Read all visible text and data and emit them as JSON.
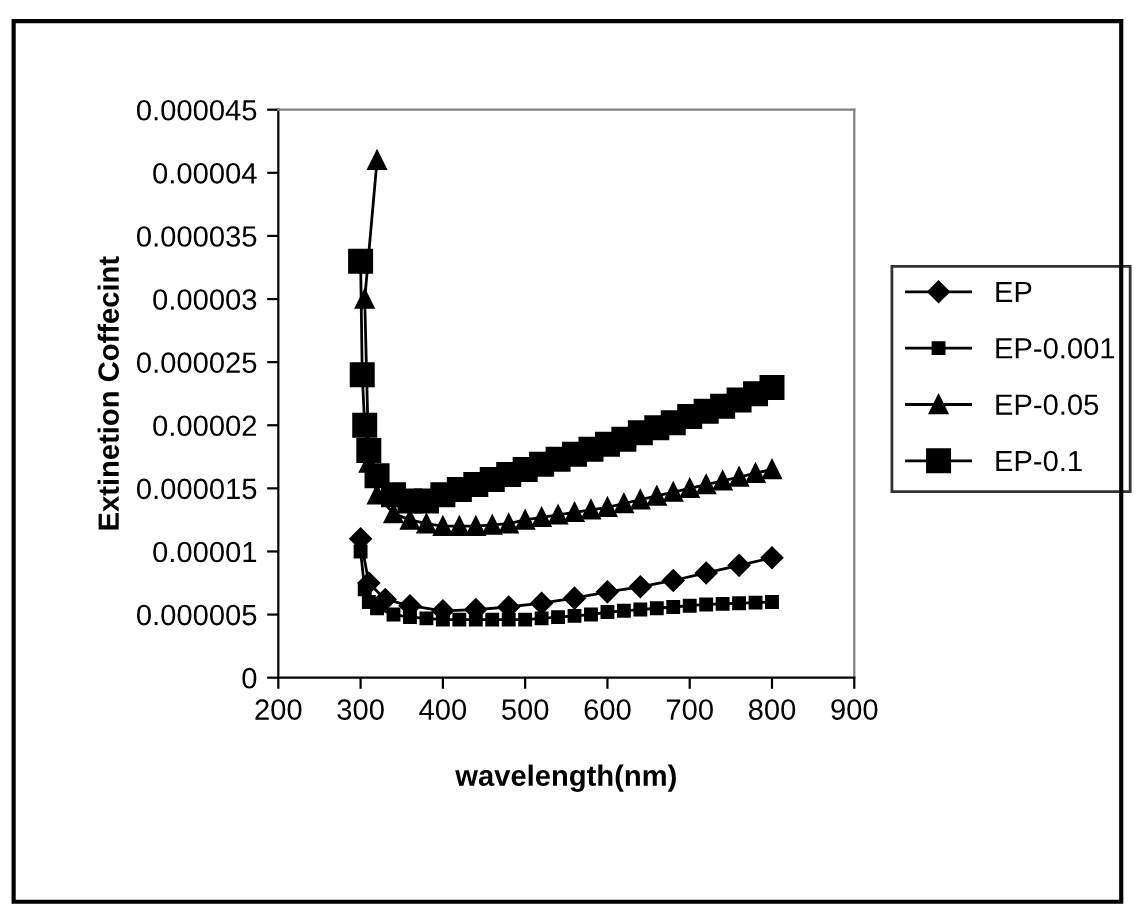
{
  "chart_data": {
    "type": "line",
    "xlabel": "wavelength(nm)",
    "ylabel": "Extinetion Coffecint",
    "xlim": [
      200,
      900
    ],
    "xticks": [
      200,
      300,
      400,
      500,
      600,
      700,
      800,
      900
    ],
    "ylim": [
      0,
      4.5e-05
    ],
    "yticks": [
      0,
      {
        "value": 5e-06,
        "label": "0.000005"
      },
      {
        "value": 1e-05,
        "label": "0.00001"
      },
      {
        "value": 1.5e-05,
        "label": "0.000015"
      },
      {
        "value": 2e-05,
        "label": "0.00002"
      },
      {
        "value": 2.5e-05,
        "label": "0.000025"
      },
      {
        "value": 3e-05,
        "label": "0.00003"
      },
      {
        "value": 3.5e-05,
        "label": "0.000035"
      },
      {
        "value": 4e-05,
        "label": "0.00004"
      },
      {
        "value": 4.5e-05,
        "label": "0.000045"
      }
    ],
    "grid": false,
    "legend": "right",
    "line_style": "solid",
    "series": [
      {
        "name": "EP",
        "color": "#000000",
        "marker": "diamond",
        "x": [
          300,
          310,
          330,
          360,
          400,
          440,
          480,
          520,
          560,
          600,
          640,
          680,
          720,
          760,
          800
        ],
        "values": [
          1.1e-05,
          7.5e-06,
          6.2e-06,
          5.7e-06,
          5.3e-06,
          5.4e-06,
          5.6e-06,
          5.9e-06,
          6.3e-06,
          6.8e-06,
          7.2e-06,
          7.7e-06,
          8.3e-06,
          8.9e-06,
          9.5e-06
        ]
      },
      {
        "name": "EP-0.001",
        "color": "#000000",
        "marker": "square",
        "x": [
          300,
          305,
          310,
          320,
          340,
          360,
          380,
          400,
          420,
          440,
          460,
          480,
          500,
          520,
          540,
          560,
          580,
          600,
          620,
          640,
          660,
          680,
          700,
          720,
          740,
          760,
          780,
          800
        ],
        "values": [
          1e-05,
          7e-06,
          6e-06,
          5.5e-06,
          5e-06,
          4.8e-06,
          4.7e-06,
          4.6e-06,
          4.6e-06,
          4.6e-06,
          4.6e-06,
          4.6e-06,
          4.6e-06,
          4.7e-06,
          4.8e-06,
          4.9e-06,
          5e-06,
          5.2e-06,
          5.3e-06,
          5.4e-06,
          5.5e-06,
          5.6e-06,
          5.7e-06,
          5.8e-06,
          5.85e-06,
          5.9e-06,
          5.95e-06,
          6e-06
        ]
      },
      {
        "name": "EP-0.05",
        "color": "#000000",
        "marker": "triangle",
        "x": [
          320,
          305,
          310,
          320,
          340,
          360,
          380,
          400,
          420,
          440,
          460,
          480,
          500,
          520,
          540,
          560,
          580,
          600,
          620,
          640,
          660,
          680,
          700,
          720,
          740,
          760,
          780,
          800
        ],
        "values": [
          4.1e-05,
          3e-05,
          1.7e-05,
          1.45e-05,
          1.3e-05,
          1.25e-05,
          1.22e-05,
          1.2e-05,
          1.2e-05,
          1.2e-05,
          1.21e-05,
          1.22e-05,
          1.25e-05,
          1.27e-05,
          1.29e-05,
          1.31e-05,
          1.33e-05,
          1.35e-05,
          1.38e-05,
          1.41e-05,
          1.44e-05,
          1.47e-05,
          1.5e-05,
          1.53e-05,
          1.56e-05,
          1.59e-05,
          1.62e-05,
          1.65e-05
        ]
      },
      {
        "name": "EP-0.1",
        "color": "#000000",
        "marker": "square",
        "x": [
          300,
          302,
          305,
          310,
          320,
          340,
          360,
          380,
          400,
          420,
          440,
          460,
          480,
          500,
          520,
          540,
          560,
          580,
          600,
          620,
          640,
          660,
          680,
          700,
          720,
          740,
          760,
          780,
          800
        ],
        "values": [
          3.3e-05,
          2.4e-05,
          2e-05,
          1.8e-05,
          1.6e-05,
          1.45e-05,
          1.4e-05,
          1.4e-05,
          1.45e-05,
          1.49e-05,
          1.53e-05,
          1.57e-05,
          1.61e-05,
          1.65e-05,
          1.69e-05,
          1.73e-05,
          1.77e-05,
          1.81e-05,
          1.85e-05,
          1.89e-05,
          1.94e-05,
          1.98e-05,
          2.02e-05,
          2.07e-05,
          2.11e-05,
          2.15e-05,
          2.2e-05,
          2.25e-05,
          2.3e-05
        ]
      }
    ]
  }
}
